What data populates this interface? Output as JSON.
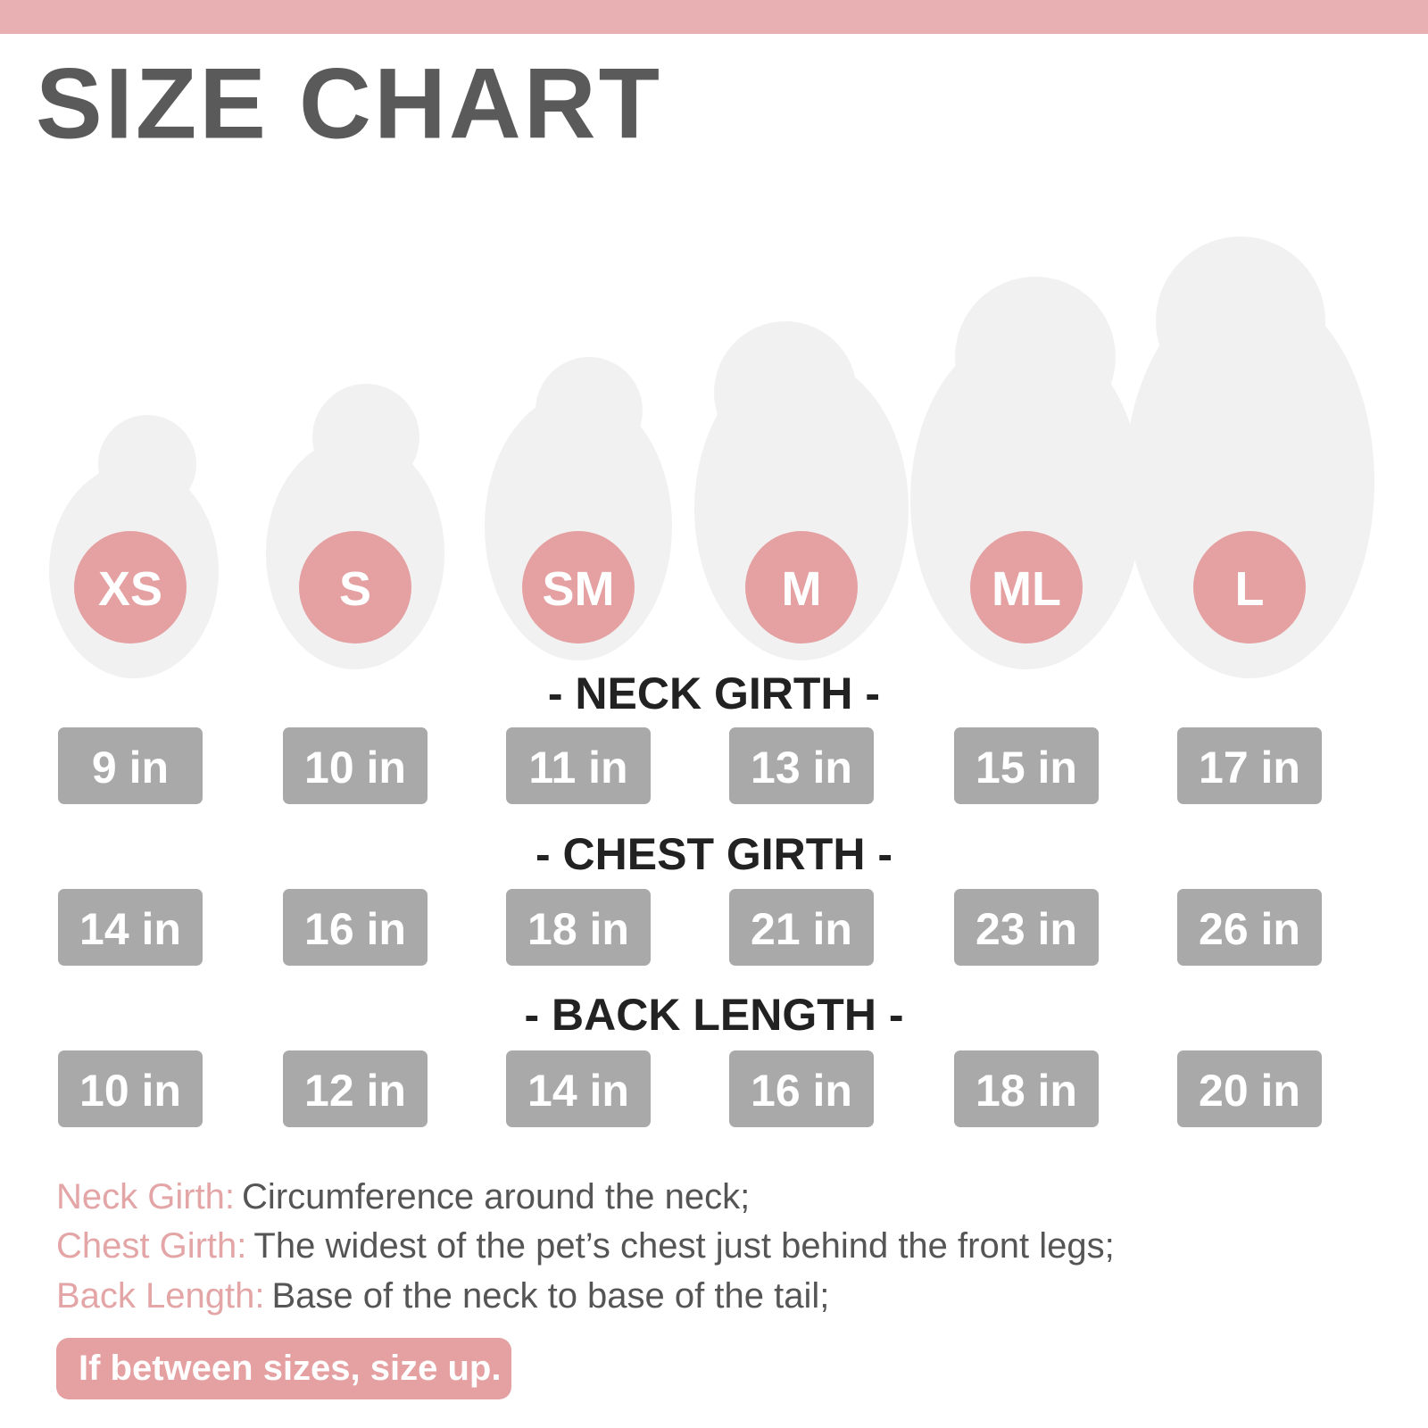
{
  "title": "SIZE CHART",
  "sizes": [
    "XS",
    "S",
    "SM",
    "M",
    "ML",
    "L"
  ],
  "measurements": [
    {
      "label": "- NECK GIRTH -",
      "values": [
        "9 in",
        "10 in",
        "11 in",
        "13 in",
        "15 in",
        "17 in"
      ]
    },
    {
      "label": "- CHEST GIRTH -",
      "values": [
        "14 in",
        "16 in",
        "18 in",
        "21 in",
        "23 in",
        "26 in"
      ]
    },
    {
      "label": "- BACK LENGTH -",
      "values": [
        "10 in",
        "12 in",
        "14 in",
        "16 in",
        "18 in",
        "20 in"
      ]
    }
  ],
  "definitions": [
    {
      "term": "Neck Girth:",
      "text": "Circumference around the neck;"
    },
    {
      "term": "Chest Girth:",
      "text": "The widest of the pet’s chest just behind the front legs;"
    },
    {
      "term": "Back Length:",
      "text": "Base of the neck to base of the tail;"
    }
  ],
  "note": "If between sizes, size up."
}
